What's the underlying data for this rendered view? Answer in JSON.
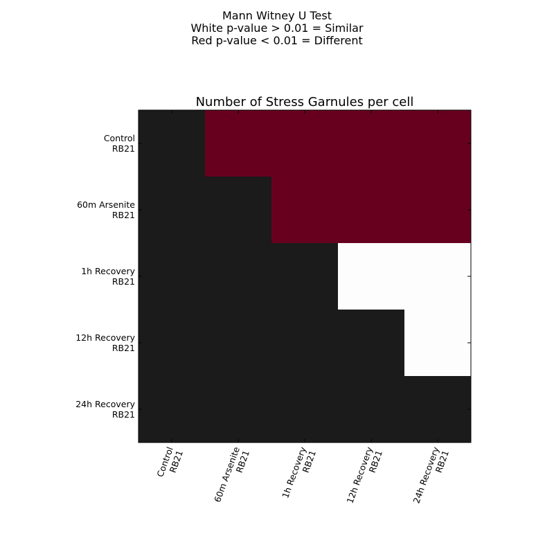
{
  "chart_data": {
    "type": "heatmap",
    "suptitle": [
      "Mann Witney U Test",
      "White p-value > 0.01 = Similar",
      "Red p-value < 0.01 = Different"
    ],
    "title": "Number of Stress Garnules per cell",
    "row_labels": [
      [
        "Control",
        "RB21"
      ],
      [
        "60m Arsenite",
        "RB21"
      ],
      [
        "1h Recovery",
        "RB21"
      ],
      [
        "12h Recovery",
        "RB21"
      ],
      [
        "24h Recovery",
        "RB21"
      ]
    ],
    "col_labels": [
      [
        "Control",
        "RB21"
      ],
      [
        "60m Arsenite",
        "RB21"
      ],
      [
        "1h Recovery",
        "RB21"
      ],
      [
        "12h Recovery",
        "RB21"
      ],
      [
        "24h Recovery",
        "RB21"
      ]
    ],
    "cells": [
      [
        "none",
        "different",
        "different",
        "different",
        "different"
      ],
      [
        "none",
        "none",
        "different",
        "different",
        "different"
      ],
      [
        "none",
        "none",
        "none",
        "similar",
        "similar"
      ],
      [
        "none",
        "none",
        "none",
        "none",
        "similar"
      ],
      [
        "none",
        "none",
        "none",
        "none",
        "none"
      ]
    ],
    "colors": {
      "different": "#67001f",
      "similar": "#fdfdfd",
      "none": "#1b1b1b"
    }
  }
}
